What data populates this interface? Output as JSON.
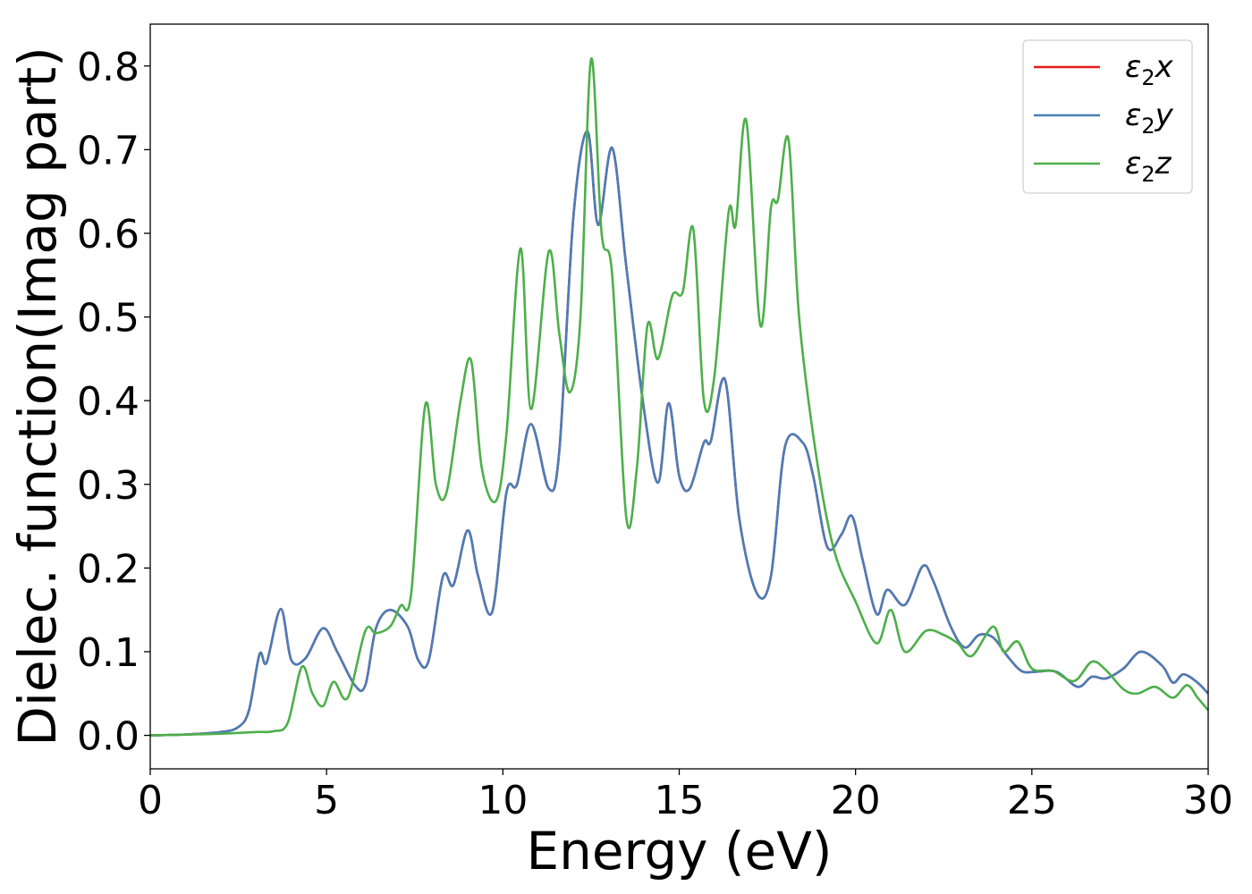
{
  "chart_data": {
    "type": "line",
    "xlabel": "Energy (eV)",
    "ylabel": "Dielec. function(Imag part)",
    "xlim": [
      0,
      30
    ],
    "ylim": [
      -0.04,
      0.85
    ],
    "xticks": [
      0,
      5,
      10,
      15,
      20,
      25,
      30
    ],
    "xtick_labels": [
      "0",
      "5",
      "10",
      "15",
      "20",
      "25",
      "30"
    ],
    "yticks": [
      0.0,
      0.1,
      0.2,
      0.3,
      0.4,
      0.5,
      0.6,
      0.7,
      0.8
    ],
    "ytick_labels": [
      "0.0",
      "0.1",
      "0.2",
      "0.3",
      "0.4",
      "0.5",
      "0.6",
      "0.7",
      "0.8"
    ],
    "grid": false,
    "legend_position": "top-right",
    "series": [
      {
        "name": "ε₂x",
        "legend": {
          "base": "ε",
          "sub": "2",
          "tail": "x"
        },
        "color": "#e41a1c",
        "x": [
          0,
          1,
          2,
          2.5,
          2.8,
          3.1,
          3.3,
          3.7,
          4.0,
          4.4,
          4.9,
          5.3,
          5.8,
          6.1,
          6.4,
          6.8,
          7.3,
          7.6,
          7.9,
          8.3,
          8.6,
          9.0,
          9.3,
          9.7,
          10.1,
          10.4,
          10.8,
          11.3,
          11.6,
          12.0,
          12.4,
          12.7,
          13.1,
          13.5,
          14.0,
          14.4,
          14.7,
          15.0,
          15.3,
          15.7,
          15.9,
          16.3,
          16.7,
          17.2,
          17.6,
          18.0,
          18.5,
          18.8,
          19.2,
          19.6,
          19.9,
          20.2,
          20.6,
          20.9,
          21.4,
          21.9,
          22.2,
          22.7,
          23.1,
          23.5,
          23.9,
          24.3,
          24.7,
          25.1,
          25.7,
          26.3,
          26.7,
          27.1,
          27.6,
          28.1,
          28.7,
          29.0,
          29.3,
          29.7,
          30
        ],
        "values": [
          0.0,
          0.001,
          0.004,
          0.01,
          0.03,
          0.097,
          0.087,
          0.151,
          0.09,
          0.092,
          0.128,
          0.1,
          0.06,
          0.06,
          0.128,
          0.15,
          0.13,
          0.09,
          0.09,
          0.19,
          0.18,
          0.245,
          0.19,
          0.148,
          0.29,
          0.3,
          0.372,
          0.295,
          0.34,
          0.62,
          0.722,
          0.61,
          0.702,
          0.56,
          0.39,
          0.302,
          0.397,
          0.31,
          0.295,
          0.35,
          0.352,
          0.425,
          0.26,
          0.17,
          0.19,
          0.345,
          0.35,
          0.31,
          0.225,
          0.24,
          0.262,
          0.21,
          0.145,
          0.174,
          0.156,
          0.202,
          0.185,
          0.13,
          0.105,
          0.12,
          0.117,
          0.095,
          0.077,
          0.076,
          0.076,
          0.058,
          0.07,
          0.068,
          0.08,
          0.1,
          0.083,
          0.063,
          0.073,
          0.063,
          0.05
        ]
      },
      {
        "name": "ε₂y",
        "legend": {
          "base": "ε",
          "sub": "2",
          "tail": "y"
        },
        "color": "#4a7db8",
        "x": [
          0,
          1,
          2,
          2.5,
          2.8,
          3.1,
          3.3,
          3.7,
          4.0,
          4.4,
          4.9,
          5.3,
          5.8,
          6.1,
          6.4,
          6.8,
          7.3,
          7.6,
          7.9,
          8.3,
          8.6,
          9.0,
          9.3,
          9.7,
          10.1,
          10.4,
          10.8,
          11.3,
          11.6,
          12.0,
          12.4,
          12.7,
          13.1,
          13.5,
          14.0,
          14.4,
          14.7,
          15.0,
          15.3,
          15.7,
          15.9,
          16.3,
          16.7,
          17.2,
          17.6,
          18.0,
          18.5,
          18.8,
          19.2,
          19.6,
          19.9,
          20.2,
          20.6,
          20.9,
          21.4,
          21.9,
          22.2,
          22.7,
          23.1,
          23.5,
          23.9,
          24.3,
          24.7,
          25.1,
          25.7,
          26.3,
          26.7,
          27.1,
          27.6,
          28.1,
          28.7,
          29.0,
          29.3,
          29.7,
          30
        ],
        "values": [
          0.0,
          0.001,
          0.004,
          0.01,
          0.03,
          0.097,
          0.087,
          0.151,
          0.09,
          0.092,
          0.128,
          0.1,
          0.06,
          0.06,
          0.128,
          0.15,
          0.13,
          0.09,
          0.09,
          0.19,
          0.18,
          0.245,
          0.19,
          0.148,
          0.29,
          0.3,
          0.372,
          0.295,
          0.34,
          0.62,
          0.722,
          0.61,
          0.702,
          0.56,
          0.39,
          0.302,
          0.397,
          0.31,
          0.295,
          0.35,
          0.352,
          0.425,
          0.26,
          0.17,
          0.19,
          0.345,
          0.35,
          0.31,
          0.225,
          0.24,
          0.262,
          0.21,
          0.145,
          0.174,
          0.156,
          0.202,
          0.185,
          0.13,
          0.105,
          0.12,
          0.117,
          0.095,
          0.077,
          0.076,
          0.076,
          0.058,
          0.07,
          0.068,
          0.08,
          0.1,
          0.083,
          0.063,
          0.073,
          0.063,
          0.05
        ]
      },
      {
        "name": "ε₂z",
        "legend": {
          "base": "ε",
          "sub": "2",
          "tail": "z"
        },
        "color": "#4daf4a",
        "x": [
          0,
          1,
          2,
          3,
          3.5,
          3.9,
          4.3,
          4.6,
          4.9,
          5.2,
          5.6,
          6.1,
          6.4,
          6.8,
          7.1,
          7.4,
          7.8,
          8.1,
          8.4,
          8.8,
          9.1,
          9.4,
          9.8,
          10.1,
          10.5,
          10.8,
          11.3,
          11.6,
          11.9,
          12.2,
          12.5,
          12.8,
          13.1,
          13.5,
          13.8,
          14.1,
          14.4,
          14.8,
          15.1,
          15.4,
          15.7,
          16.0,
          16.4,
          16.6,
          16.9,
          17.3,
          17.6,
          17.8,
          18.1,
          18.4,
          18.9,
          19.4,
          20.0,
          20.6,
          21.0,
          21.4,
          22.0,
          22.5,
          22.9,
          23.3,
          23.9,
          24.2,
          24.6,
          25.0,
          25.6,
          26.2,
          26.7,
          27.1,
          27.6,
          28.0,
          28.5,
          29.0,
          29.4,
          29.7,
          30
        ],
        "values": [
          0.0,
          0.001,
          0.002,
          0.004,
          0.005,
          0.015,
          0.082,
          0.05,
          0.035,
          0.064,
          0.045,
          0.125,
          0.122,
          0.13,
          0.155,
          0.17,
          0.395,
          0.3,
          0.29,
          0.4,
          0.448,
          0.32,
          0.28,
          0.36,
          0.582,
          0.39,
          0.578,
          0.48,
          0.41,
          0.5,
          0.808,
          0.6,
          0.55,
          0.26,
          0.32,
          0.49,
          0.45,
          0.525,
          0.53,
          0.605,
          0.4,
          0.43,
          0.625,
          0.61,
          0.735,
          0.49,
          0.63,
          0.64,
          0.712,
          0.5,
          0.33,
          0.22,
          0.16,
          0.11,
          0.15,
          0.1,
          0.125,
          0.12,
          0.11,
          0.095,
          0.13,
          0.1,
          0.112,
          0.08,
          0.077,
          0.065,
          0.088,
          0.078,
          0.055,
          0.05,
          0.058,
          0.045,
          0.06,
          0.045,
          0.03
        ]
      }
    ]
  }
}
